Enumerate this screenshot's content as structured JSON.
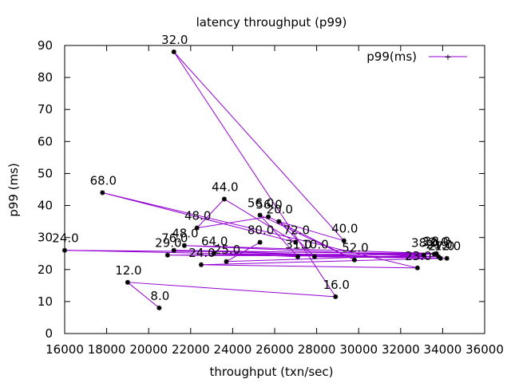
{
  "chart_data": {
    "type": "line",
    "title": "latency throughput (p99)",
    "xlabel": "throughput (txn/sec)",
    "ylabel": "p99 (ms)",
    "xlim": [
      16000,
      36000
    ],
    "ylim": [
      0,
      90
    ],
    "xticks": [
      16000,
      18000,
      20000,
      22000,
      24000,
      26000,
      28000,
      30000,
      32000,
      34000,
      36000
    ],
    "yticks": [
      0,
      10,
      20,
      30,
      40,
      50,
      60,
      70,
      80,
      90
    ],
    "xtick_labels": [
      "16000",
      "18000",
      "20000",
      "22000",
      "24000",
      "26000",
      "28000",
      "30000",
      "32000",
      "34000",
      "36000"
    ],
    "ytick_labels": [
      "0",
      "10",
      "20",
      "30",
      "40",
      "50",
      "60",
      "70",
      "80",
      "90"
    ],
    "grid": false,
    "legend_position": "top-right",
    "series": [
      {
        "name": "p99(ms)",
        "color": "#9400d3",
        "points": [
          {
            "x": 20500,
            "y": 8,
            "label": "8.0"
          },
          {
            "x": 19000,
            "y": 16,
            "label": "12.0"
          },
          {
            "x": 28900,
            "y": 11.5,
            "label": "16.0"
          },
          {
            "x": 21200,
            "y": 88,
            "label": "32.0"
          },
          {
            "x": 29300,
            "y": 29,
            "label": "40.0"
          },
          {
            "x": 26200,
            "y": 35,
            "label": "20.0"
          },
          {
            "x": 27900,
            "y": 24,
            "label": "10.0"
          },
          {
            "x": 34200,
            "y": 23.5,
            "label": "12.0"
          },
          {
            "x": 16000,
            "y": 26,
            "label": "24.0"
          },
          {
            "x": 33700,
            "y": 25,
            "label": "28.0"
          },
          {
            "x": 21700,
            "y": 27.5,
            "label": "48.0"
          },
          {
            "x": 33800,
            "y": 24,
            "label": "21.0"
          },
          {
            "x": 20900,
            "y": 24.5,
            "label": "29.0"
          },
          {
            "x": 33600,
            "y": 24.8,
            "label": "32.0"
          },
          {
            "x": 21200,
            "y": 26,
            "label": "76.0"
          },
          {
            "x": 33900,
            "y": 23.5,
            "label": "27.0"
          },
          {
            "x": 22500,
            "y": 21.5,
            "label": "24.0"
          },
          {
            "x": 32800,
            "y": 20.5,
            "label": "23.0"
          },
          {
            "x": 17800,
            "y": 44,
            "label": "68.0"
          },
          {
            "x": 27000,
            "y": 28.5,
            "label": "72.0"
          },
          {
            "x": 23600,
            "y": 42,
            "label": "44.0"
          },
          {
            "x": 22300,
            "y": 33,
            "label": "48.0"
          },
          {
            "x": 25700,
            "y": 36.5,
            "label": "56.0"
          },
          {
            "x": 29800,
            "y": 23,
            "label": "52.0"
          },
          {
            "x": 25300,
            "y": 37,
            "label": "56.0"
          },
          {
            "x": 27100,
            "y": 24,
            "label": "31.0"
          },
          {
            "x": 23100,
            "y": 25,
            "label": "64.0"
          },
          {
            "x": 33100,
            "y": 24.5,
            "label": "38.0"
          },
          {
            "x": 23700,
            "y": 22.5,
            "label": "25.0"
          },
          {
            "x": 25300,
            "y": 28.5,
            "label": "80.0"
          }
        ]
      }
    ]
  }
}
